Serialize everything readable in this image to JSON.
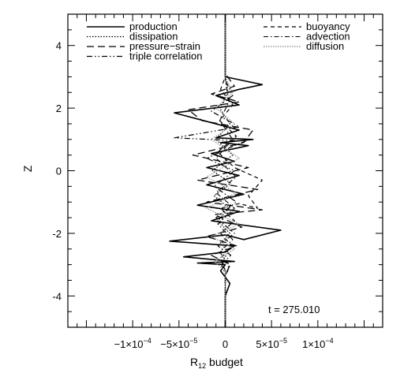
{
  "chart_data": {
    "type": "line",
    "title": "",
    "xlabel": "R12 budget",
    "xlabel_main": "R",
    "xlabel_sub": "12",
    "xlabel_rest": " budget",
    "ylabel": "Z",
    "xlim": [
      -0.00017,
      0.00017
    ],
    "ylim": [
      -5,
      5
    ],
    "xticks": [
      {
        "value": -0.0001,
        "label": "−1×10",
        "exp": "−4"
      },
      {
        "value": -5e-05,
        "label": "−5×10",
        "exp": "−5"
      },
      {
        "value": 0,
        "label": "0",
        "exp": ""
      },
      {
        "value": 5e-05,
        "label": "5×10",
        "exp": "−5"
      },
      {
        "value": 0.0001,
        "label": "1×10",
        "exp": "−4"
      }
    ],
    "yticks": [
      -4,
      -2,
      0,
      2,
      4
    ],
    "annotation": "t = 275.010",
    "legend_left": [
      "production",
      "dissipation",
      "pressure−strain",
      "triple correlation"
    ],
    "legend_right": [
      "buoyancy",
      "advection",
      "diffusion"
    ],
    "series": [
      {
        "name": "production",
        "dash": "",
        "color": "#000000",
        "width": 1.6,
        "x": [
          0,
          0,
          5e-06,
          -5e-06,
          0,
          -3e-05,
          1e-05,
          -4.5e-05,
          0,
          1e-05,
          -6e-05,
          0,
          2e-05,
          6e-05,
          -1.5e-05,
          1.5e-05,
          -3e-05,
          2e-05,
          -2e-05,
          1.5e-05,
          -2e-05,
          1e-05,
          -1.5e-05,
          2.5e-05,
          -5e-06,
          3e-05,
          -1e-05,
          1.5e-05,
          -5.5e-05,
          1.5e-05,
          -1e-05,
          1.5e-05,
          4e-05,
          0,
          0,
          0
        ],
        "y": [
          -5,
          -4,
          -3.6,
          -3.2,
          -3.0,
          -2.95,
          -2.9,
          -2.75,
          -2.6,
          -2.4,
          -2.25,
          -2.05,
          -2.2,
          -1.9,
          -1.6,
          -1.3,
          -1.1,
          -0.75,
          -0.45,
          -0.15,
          0.1,
          0.3,
          0.55,
          0.8,
          0.9,
          1.0,
          1.05,
          1.3,
          1.85,
          2.1,
          2.4,
          2.6,
          2.75,
          3.0,
          3.5,
          5
        ]
      },
      {
        "name": "dissipation",
        "dash": "1.5,2",
        "color": "#000000",
        "width": 1.3,
        "x": [
          0,
          0,
          -3e-06,
          3e-06,
          -5e-06,
          5e-06,
          -8e-06,
          4e-06,
          -1.2e-05,
          6e-06,
          -1.4e-05,
          8e-06,
          -1e-05,
          5e-06,
          -6e-06,
          3e-06,
          0,
          0
        ],
        "y": [
          -5,
          -3.2,
          -2.9,
          -2.6,
          -2.3,
          -2.0,
          -1.6,
          -1.2,
          -0.8,
          -0.4,
          0,
          0.5,
          1.0,
          1.5,
          2.0,
          2.5,
          3.0,
          5
        ]
      },
      {
        "name": "pressure−strain",
        "dash": "9,5",
        "color": "#000000",
        "width": 1.3,
        "x": [
          0,
          0,
          5e-06,
          -1.5e-05,
          1.2e-05,
          -2e-05,
          1.8e-05,
          -1.2e-05,
          4e-05,
          -2e-05,
          3.5e-05,
          -3e-05,
          2.5e-05,
          -3.5e-05,
          2e-05,
          3e-05,
          -2.5e-05,
          -4e-05,
          1.5e-05,
          -1.5e-05,
          1e-05,
          0,
          0
        ],
        "y": [
          -5,
          -3.4,
          -3.0,
          -2.7,
          -2.4,
          -2.1,
          -1.8,
          -1.4,
          -1.25,
          -1.0,
          -0.6,
          -0.3,
          0.1,
          0.5,
          0.9,
          1.3,
          1.6,
          1.95,
          2.2,
          2.45,
          2.7,
          3.1,
          5
        ]
      },
      {
        "name": "triple correlation",
        "dash": "7,3,1.5,3,1.5,3",
        "color": "#000000",
        "width": 1.2,
        "x": [
          0,
          0,
          -4e-06,
          6e-06,
          -8e-06,
          1e-05,
          -1e-05,
          1.2e-05,
          -1.2e-05,
          1e-05,
          -2e-05,
          1e-05,
          2.2e-05,
          -5.5e-05,
          1.5e-05,
          -1.5e-05,
          8e-06,
          0,
          0
        ],
        "y": [
          -5,
          -3.3,
          -3.0,
          -2.7,
          -2.4,
          -2.0,
          -1.5,
          -1.0,
          -0.5,
          0,
          0.4,
          0.8,
          0.95,
          1.05,
          1.4,
          1.9,
          2.4,
          2.9,
          5
        ]
      },
      {
        "name": "buoyancy",
        "dash": "5,4",
        "color": "#000000",
        "width": 1.2,
        "x": [
          0,
          0,
          -5e-06,
          7e-06,
          -5e-06,
          1e-05,
          -5e-06,
          1.5e-05,
          3.5e-05,
          2.5e-05,
          4e-05,
          1e-05,
          -8e-06,
          1.2e-05,
          -6e-06,
          8e-06,
          -5e-06,
          0,
          0
        ],
        "y": [
          -5,
          -3.2,
          -2.8,
          -2.4,
          -2.0,
          -1.6,
          -1.2,
          -1.05,
          -1.2,
          -0.8,
          -0.3,
          0.1,
          0.6,
          1.1,
          1.6,
          2.1,
          2.6,
          3.0,
          5
        ]
      },
      {
        "name": "advection",
        "dash": "6,3,1.5,3",
        "color": "#000000",
        "width": 1.1,
        "x": [
          0,
          0,
          4e-06,
          -6e-06,
          8e-06,
          -8e-06,
          1e-05,
          -1e-05,
          1.2e-05,
          -1e-05,
          8e-06,
          -6e-06,
          4e-06,
          0,
          0
        ],
        "y": [
          -5,
          -3.4,
          -3.0,
          -2.6,
          -2.2,
          -1.7,
          -1.2,
          -0.7,
          -0.2,
          0.4,
          1.0,
          1.6,
          2.2,
          2.9,
          5
        ]
      },
      {
        "name": "diffusion",
        "dash": "1.5,1.5",
        "color": "#9a9a9a",
        "width": 1.4,
        "x": [
          0,
          0,
          -1.2e-05,
          1e-05,
          -1.5e-05,
          1.5e-05,
          -2e-05,
          1.2e-05,
          -2e-05,
          1.5e-05,
          -1.5e-05,
          1e-05,
          -1e-05,
          8e-06,
          0,
          0
        ],
        "y": [
          -5,
          -3.2,
          -2.9,
          -2.5,
          -2.1,
          -1.7,
          -1.2,
          -0.7,
          -0.2,
          0.4,
          1.0,
          1.5,
          2.0,
          2.5,
          3.0,
          5
        ]
      }
    ]
  }
}
